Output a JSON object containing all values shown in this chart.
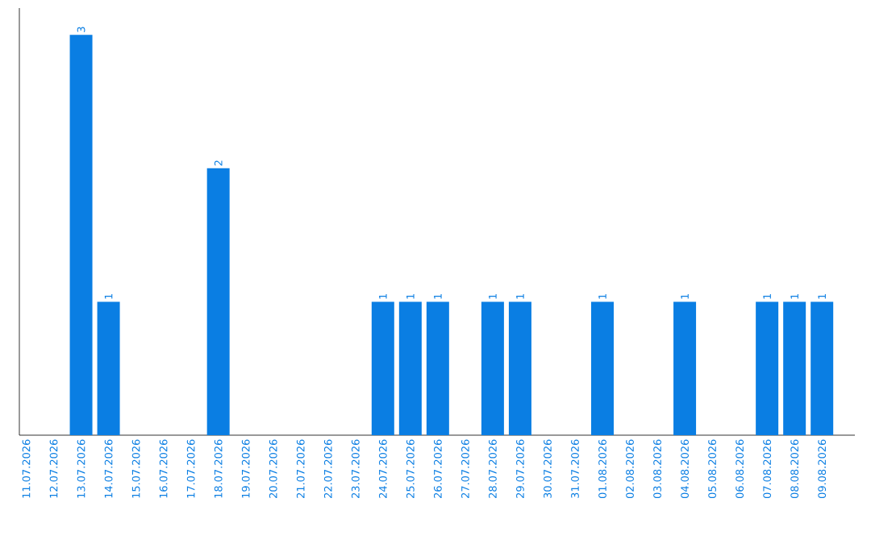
{
  "chart_data": {
    "type": "bar",
    "color": "#0a7ee3",
    "categories": [
      "11.07.2026",
      "12.07.2026",
      "13.07.2026",
      "14.07.2026",
      "15.07.2026",
      "16.07.2026",
      "17.07.2026",
      "18.07.2026",
      "19.07.2026",
      "20.07.2026",
      "21.07.2026",
      "22.07.2026",
      "23.07.2026",
      "24.07.2026",
      "25.07.2026",
      "26.07.2026",
      "27.07.2026",
      "28.07.2026",
      "29.07.2026",
      "30.07.2026",
      "31.07.2026",
      "01.08.2026",
      "02.08.2026",
      "03.08.2026",
      "04.08.2026",
      "05.08.2026",
      "06.08.2026",
      "07.08.2026",
      "08.08.2026",
      "09.08.2026"
    ],
    "values": [
      0,
      0,
      3,
      1,
      0,
      0,
      0,
      2,
      0,
      0,
      0,
      0,
      0,
      1,
      1,
      1,
      0,
      1,
      1,
      0,
      0,
      1,
      0,
      0,
      1,
      0,
      0,
      1,
      1,
      1
    ],
    "value_labels": [
      null,
      null,
      "3",
      "1",
      null,
      null,
      null,
      "2",
      null,
      null,
      null,
      null,
      null,
      "1",
      "1",
      "1",
      null,
      "1",
      "1",
      null,
      null,
      "1",
      null,
      null,
      "1",
      null,
      null,
      "1",
      "1",
      "1"
    ],
    "ylim": [
      0,
      3.2
    ],
    "tick_labels": "x",
    "grid": false
  }
}
